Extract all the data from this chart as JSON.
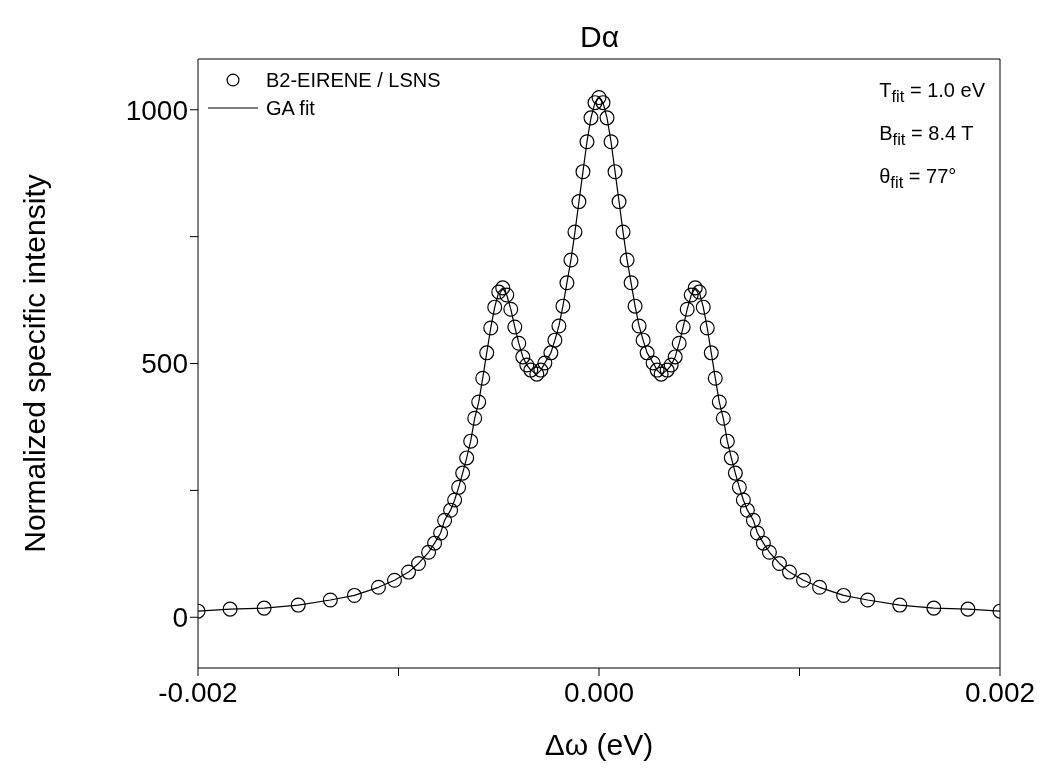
{
  "chart_data": {
    "type": "scatter",
    "title": "Dα",
    "xlabel": "Δω (eV)",
    "ylabel": "Normalized specific intensity",
    "xlim": [
      -0.002,
      0.002
    ],
    "xticks": [
      {
        "value": -0.002,
        "label": "-0.002"
      },
      {
        "value": -0.001,
        "label": null
      },
      {
        "value": 0,
        "label": "0.000"
      },
      {
        "value": 0.001,
        "label": null
      },
      {
        "value": 0.002,
        "label": "0.002"
      }
    ],
    "ylim": [
      -100,
      1100
    ],
    "yticks": [
      0,
      {
        "value": 250,
        "label": null
      },
      500,
      {
        "value": 750,
        "label": null
      },
      1000
    ],
    "legend": "top left",
    "grid": false,
    "annotations": [
      "T$_{fit}$ = 1.0 eV",
      "B$_{fit}$ = 8.4 T",
      "θ$_{fit}$ = 77°"
    ],
    "series": [
      {
        "name": "B2-EIRENE / LSNS",
        "marker": "circle",
        "color": "#000000",
        "x": [
          -0.002,
          -0.00184,
          -0.00167,
          -0.0015,
          -0.00134,
          -0.00122,
          -0.0011,
          -0.00102,
          -0.00095,
          -0.0009,
          -0.00085,
          -0.00082,
          -0.00079,
          -0.00077,
          -0.00074,
          -0.00072,
          -0.0007,
          -0.00068,
          -0.00066,
          -0.00064,
          -0.00062,
          -0.0006,
          -0.00058,
          -0.00056,
          -0.00054,
          -0.00052,
          -0.0005,
          -0.00048,
          -0.00046,
          -0.00044,
          -0.00042,
          -0.0004,
          -0.00038,
          -0.00036,
          -0.00034,
          -0.00031,
          -0.00029,
          -0.00027,
          -0.00024,
          -0.00022,
          -0.0002,
          -0.00018,
          -0.00016,
          -0.00014,
          -0.00012,
          -0.0001,
          -8e-05,
          -6e-05,
          -4e-05,
          -2e-05,
          0,
          2e-05,
          4e-05,
          6e-05,
          8e-05,
          0.0001,
          0.00012,
          0.00014,
          0.00016,
          0.00018,
          0.0002,
          0.00022,
          0.00024,
          0.00027,
          0.00029,
          0.00031,
          0.00034,
          0.00036,
          0.00038,
          0.0004,
          0.00042,
          0.00044,
          0.00046,
          0.00048,
          0.0005,
          0.00052,
          0.00054,
          0.00056,
          0.00058,
          0.0006,
          0.00062,
          0.00064,
          0.00066,
          0.00068,
          0.0007,
          0.00072,
          0.00074,
          0.00077,
          0.00079,
          0.00082,
          0.00085,
          0.0009,
          0.00095,
          0.00102,
          0.0011,
          0.00122,
          0.00134,
          0.0015,
          0.00167,
          0.00184,
          0.002
        ],
        "values": [
          12,
          16,
          18,
          24,
          34,
          43,
          59,
          73,
          89,
          106,
          128,
          146,
          166,
          191,
          211,
          231,
          256,
          284,
          314,
          347,
          392,
          424,
          471,
          521,
          570,
          611,
          641,
          649,
          635,
          607,
          572,
          540,
          513,
          497,
          487,
          479,
          487,
          501,
          521,
          546,
          574,
          613,
          659,
          704,
          759,
          819,
          878,
          937,
          984,
          1014,
          1024,
          1014,
          984,
          937,
          878,
          819,
          759,
          704,
          659,
          613,
          574,
          546,
          521,
          501,
          487,
          479,
          487,
          497,
          513,
          540,
          572,
          607,
          635,
          649,
          641,
          611,
          570,
          521,
          471,
          424,
          392,
          347,
          314,
          284,
          256,
          231,
          211,
          191,
          166,
          146,
          128,
          106,
          89,
          73,
          59,
          43,
          34,
          24,
          18,
          16,
          12
        ]
      },
      {
        "name": "GA fit",
        "type": "line",
        "color": "#000000",
        "x": [
          -0.002,
          -0.00184,
          -0.00167,
          -0.0015,
          -0.00134,
          -0.00122,
          -0.0011,
          -0.00102,
          -0.00095,
          -0.0009,
          -0.00085,
          -0.00082,
          -0.00079,
          -0.00077,
          -0.00074,
          -0.00072,
          -0.0007,
          -0.00068,
          -0.00066,
          -0.00064,
          -0.00062,
          -0.0006,
          -0.00058,
          -0.00056,
          -0.00054,
          -0.00052,
          -0.0005,
          -0.00048,
          -0.00046,
          -0.00044,
          -0.00042,
          -0.0004,
          -0.00038,
          -0.00036,
          -0.00034,
          -0.00031,
          -0.00029,
          -0.00027,
          -0.00024,
          -0.00022,
          -0.0002,
          -0.00018,
          -0.00016,
          -0.00014,
          -0.00012,
          -0.0001,
          -8e-05,
          -6e-05,
          -4e-05,
          -2e-05,
          0,
          2e-05,
          4e-05,
          6e-05,
          8e-05,
          0.0001,
          0.00012,
          0.00014,
          0.00016,
          0.00018,
          0.0002,
          0.00022,
          0.00024,
          0.00027,
          0.00029,
          0.00031,
          0.00034,
          0.00036,
          0.00038,
          0.0004,
          0.00042,
          0.00044,
          0.00046,
          0.00048,
          0.0005,
          0.00052,
          0.00054,
          0.00056,
          0.00058,
          0.0006,
          0.00062,
          0.00064,
          0.00066,
          0.00068,
          0.0007,
          0.00072,
          0.00074,
          0.00077,
          0.00079,
          0.00082,
          0.00085,
          0.0009,
          0.00095,
          0.00102,
          0.0011,
          0.00122,
          0.00134,
          0.0015,
          0.00167,
          0.00184,
          0.002
        ],
        "values": [
          12,
          16,
          18,
          24,
          34,
          43,
          59,
          73,
          89,
          106,
          128,
          146,
          166,
          191,
          211,
          231,
          256,
          284,
          314,
          347,
          392,
          424,
          471,
          521,
          570,
          611,
          641,
          649,
          635,
          607,
          572,
          540,
          513,
          497,
          487,
          479,
          487,
          501,
          521,
          546,
          574,
          613,
          659,
          704,
          759,
          819,
          878,
          937,
          984,
          1014,
          1024,
          1014,
          984,
          937,
          878,
          819,
          759,
          704,
          659,
          613,
          574,
          546,
          521,
          501,
          487,
          479,
          487,
          497,
          513,
          540,
          572,
          607,
          635,
          649,
          641,
          611,
          570,
          521,
          471,
          424,
          392,
          347,
          314,
          284,
          256,
          231,
          211,
          191,
          166,
          146,
          128,
          106,
          89,
          73,
          59,
          43,
          34,
          24,
          18,
          16,
          12
        ]
      }
    ]
  }
}
